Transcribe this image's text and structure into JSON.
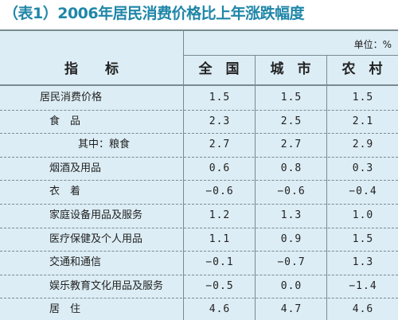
{
  "title": "（表1）2006年居民消费价格比上年涨跌幅度",
  "table": {
    "unit": "单位：%",
    "header": [
      "指　　标",
      "全　国",
      "城　市",
      "农　村"
    ],
    "rows": [
      [
        "居民消费价格",
        "1.5",
        "1.5",
        "1.5"
      ],
      [
        "食　品",
        "2.3",
        "2.5",
        "2.1"
      ],
      [
        "其中：粮食",
        "2.7",
        "2.7",
        "2.9"
      ],
      [
        "烟酒及用品",
        "0.6",
        "0.8",
        "0.3"
      ],
      [
        "衣　着",
        "−0.6",
        "−0.6",
        "−0.4"
      ],
      [
        "家庭设备用品及服务",
        "1.2",
        "1.3",
        "1.0"
      ],
      [
        "医疗保健及个人用品",
        "1.1",
        "0.9",
        "1.5"
      ],
      [
        "交通和通信",
        "−0.1",
        "−0.7",
        "1.3"
      ],
      [
        "娱乐教育文化用品及服务",
        "−0.5",
        "0.0",
        "−1.4"
      ],
      [
        "居　住",
        "4.6",
        "4.7",
        "4.6"
      ]
    ]
  }
}
